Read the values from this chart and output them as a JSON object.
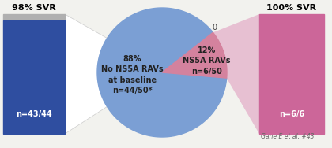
{
  "pie_colors": [
    "#7b9fd4",
    "#d4829e"
  ],
  "pie_labels_blue": [
    "88%",
    "No NS5A RAVs",
    "at baseline",
    "n=44/50*"
  ],
  "pie_labels_pink": [
    "12%",
    "NS5A RAVs",
    "n=6/50"
  ],
  "bar_left_color": "#2f4ea0",
  "bar_left_top_color": "#b0b0b0",
  "bar_left_label": "n=43/44",
  "bar_left_title": "98% SVR",
  "bar_right_color": "#cc6699",
  "bar_right_label": "n=6/6",
  "bar_right_title": "100% SVR",
  "zero_label": "0",
  "citation": "Gane E et al, #43",
  "bg_color": "#f2f2ee",
  "connector_left_color": "#e8e8e8",
  "connector_right_color": "#e0a0c0"
}
